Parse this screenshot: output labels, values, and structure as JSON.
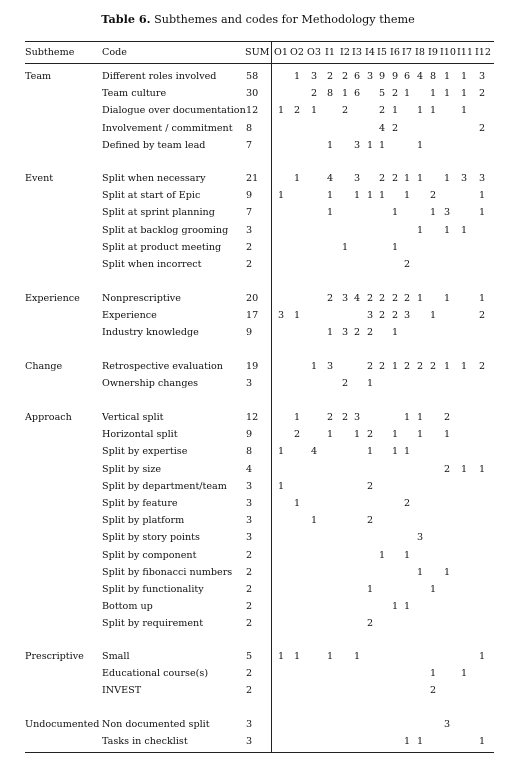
{
  "table": {
    "label": "Table 6.",
    "caption": "Subthemes and codes for Methodology theme",
    "headers": {
      "subtheme": "Subtheme",
      "code": "Code",
      "sum": "SUM",
      "columns": [
        "O1",
        "O2",
        "O3",
        "I1",
        "I2",
        "I3",
        "I4",
        "I5",
        "I6",
        "I7",
        "I8",
        "I9",
        "I10",
        "I11",
        "I12"
      ]
    },
    "groups": [
      {
        "name": "Team",
        "rows": [
          {
            "code": "Different roles involved",
            "sum": "58",
            "cells": [
              "",
              "1",
              "3",
              "2",
              "2",
              "6",
              "3",
              "9",
              "9",
              "6",
              "4",
              "8",
              "1",
              "1",
              "3"
            ]
          },
          {
            "code": "Team culture",
            "sum": "30",
            "cells": [
              "",
              "",
              "2",
              "8",
              "1",
              "6",
              "",
              "5",
              "2",
              "1",
              "",
              "1",
              "1",
              "1",
              "2"
            ]
          },
          {
            "code": "Dialogue over documentation",
            "sum": "12",
            "cells": [
              "1",
              "2",
              "1",
              "",
              "2",
              "",
              "",
              "2",
              "1",
              "",
              "1",
              "1",
              "",
              "1",
              ""
            ]
          },
          {
            "code": "Involvement / commitment",
            "sum": "8",
            "cells": [
              "",
              "",
              "",
              "",
              "",
              "",
              "",
              "4",
              "2",
              "",
              "",
              "",
              "",
              "",
              "2"
            ]
          },
          {
            "code": "Defined by team lead",
            "sum": "7",
            "cells": [
              "",
              "",
              "",
              "1",
              "",
              "3",
              "1",
              "1",
              "",
              "",
              "1",
              "",
              "",
              "",
              ""
            ]
          }
        ]
      },
      {
        "name": "Event",
        "rows": [
          {
            "code": "Split when necessary",
            "sum": "21",
            "cells": [
              "",
              "1",
              "",
              "4",
              "",
              "3",
              "",
              "2",
              "2",
              "1",
              "1",
              "",
              "1",
              "3",
              "3"
            ]
          },
          {
            "code": "Split at start of Epic",
            "sum": "9",
            "cells": [
              "1",
              "",
              "",
              "1",
              "",
              "1",
              "1",
              "1",
              "",
              "1",
              "",
              "2",
              "",
              "",
              "1"
            ]
          },
          {
            "code": "Split at sprint planning",
            "sum": "7",
            "cells": [
              "",
              "",
              "",
              "1",
              "",
              "",
              "",
              "",
              "1",
              "",
              "",
              "1",
              "3",
              "",
              "1"
            ]
          },
          {
            "code": "Split at backlog grooming",
            "sum": "3",
            "cells": [
              "",
              "",
              "",
              "",
              "",
              "",
              "",
              "",
              "",
              "",
              "1",
              "",
              "1",
              "1",
              ""
            ]
          },
          {
            "code": "Split at product meeting",
            "sum": "2",
            "cells": [
              "",
              "",
              "",
              "",
              "1",
              "",
              "",
              "",
              "1",
              "",
              "",
              "",
              "",
              "",
              ""
            ]
          },
          {
            "code": "Split when incorrect",
            "sum": "2",
            "cells": [
              "",
              "",
              "",
              "",
              "",
              "",
              "",
              "",
              "",
              "2",
              "",
              "",
              "",
              "",
              ""
            ]
          }
        ]
      },
      {
        "name": "Experience",
        "rows": [
          {
            "code": "Nonprescriptive",
            "sum": "20",
            "cells": [
              "",
              "",
              "",
              "2",
              "3",
              "4",
              "2",
              "2",
              "2",
              "2",
              "1",
              "",
              "1",
              "",
              "1"
            ]
          },
          {
            "code": "Experience",
            "sum": "17",
            "cells": [
              "3",
              "1",
              "",
              "",
              "",
              "",
              "3",
              "2",
              "2",
              "3",
              "",
              "1",
              "",
              "",
              "2"
            ]
          },
          {
            "code": "Industry knowledge",
            "sum": "9",
            "cells": [
              "",
              "",
              "",
              "1",
              "3",
              "2",
              "2",
              "",
              "1",
              "",
              "",
              "",
              "",
              "",
              ""
            ]
          }
        ]
      },
      {
        "name": "Change",
        "rows": [
          {
            "code": "Retrospective evaluation",
            "sum": "19",
            "cells": [
              "",
              "",
              "1",
              "3",
              "",
              "",
              "2",
              "2",
              "1",
              "2",
              "2",
              "2",
              "1",
              "1",
              "2"
            ]
          },
          {
            "code": "Ownership changes",
            "sum": "3",
            "cells": [
              "",
              "",
              "",
              "",
              "2",
              "",
              "1",
              "",
              "",
              "",
              "",
              "",
              "",
              "",
              ""
            ]
          }
        ]
      },
      {
        "name": "Approach",
        "rows": [
          {
            "code": "Vertical split",
            "sum": "12",
            "cells": [
              "",
              "1",
              "",
              "2",
              "2",
              "3",
              "",
              "",
              "",
              "1",
              "1",
              "",
              "2",
              "",
              ""
            ]
          },
          {
            "code": "Horizontal split",
            "sum": "9",
            "cells": [
              "",
              "2",
              "",
              "1",
              "",
              "1",
              "2",
              "",
              "1",
              "",
              "1",
              "",
              "1",
              "",
              ""
            ]
          },
          {
            "code": "Split by expertise",
            "sum": "8",
            "cells": [
              "1",
              "",
              "4",
              "",
              "",
              "",
              "1",
              "",
              "1",
              "1",
              "",
              "",
              "",
              "",
              ""
            ]
          },
          {
            "code": "Split by size",
            "sum": "4",
            "cells": [
              "",
              "",
              "",
              "",
              "",
              "",
              "",
              "",
              "",
              "",
              "",
              "",
              "2",
              "1",
              "1"
            ]
          },
          {
            "code": "Split by department/team",
            "sum": "3",
            "cells": [
              "1",
              "",
              "",
              "",
              "",
              "",
              "2",
              "",
              "",
              "",
              "",
              "",
              "",
              "",
              ""
            ]
          },
          {
            "code": "Split by feature",
            "sum": "3",
            "cells": [
              "",
              "1",
              "",
              "",
              "",
              "",
              "",
              "",
              "",
              "2",
              "",
              "",
              "",
              "",
              ""
            ]
          },
          {
            "code": "Split by platform",
            "sum": "3",
            "cells": [
              "",
              "",
              "1",
              "",
              "",
              "",
              "2",
              "",
              "",
              "",
              "",
              "",
              "",
              "",
              ""
            ]
          },
          {
            "code": "Split by story points",
            "sum": "3",
            "cells": [
              "",
              "",
              "",
              "",
              "",
              "",
              "",
              "",
              "",
              "",
              "3",
              "",
              "",
              "",
              ""
            ]
          },
          {
            "code": "Split by component",
            "sum": "2",
            "cells": [
              "",
              "",
              "",
              "",
              "",
              "",
              "",
              "1",
              "",
              "1",
              "",
              "",
              "",
              "",
              ""
            ]
          },
          {
            "code": "Split by fibonacci numbers",
            "sum": "2",
            "cells": [
              "",
              "",
              "",
              "",
              "",
              "",
              "",
              "",
              "",
              "",
              "1",
              "",
              "1",
              "",
              ""
            ]
          },
          {
            "code": "Split by functionality",
            "sum": "2",
            "cells": [
              "",
              "",
              "",
              "",
              "",
              "",
              "1",
              "",
              "",
              "",
              "",
              "1",
              "",
              "",
              ""
            ]
          },
          {
            "code": "Bottom up",
            "sum": "2",
            "cells": [
              "",
              "",
              "",
              "",
              "",
              "",
              "",
              "",
              "1",
              "1",
              "",
              "",
              "",
              "",
              ""
            ]
          },
          {
            "code": "Split by requirement",
            "sum": "2",
            "cells": [
              "",
              "",
              "",
              "",
              "",
              "",
              "2",
              "",
              "",
              "",
              "",
              "",
              "",
              "",
              ""
            ]
          }
        ]
      },
      {
        "name": "Prescriptive",
        "rows": [
          {
            "code": "Small",
            "sum": "5",
            "cells": [
              "1",
              "1",
              "",
              "1",
              "",
              "1",
              "",
              "",
              "",
              "",
              "",
              "",
              "",
              "",
              "1"
            ]
          },
          {
            "code": "Educational course(s)",
            "sum": "2",
            "cells": [
              "",
              "",
              "",
              "",
              "",
              "",
              "",
              "",
              "",
              "",
              "",
              "1",
              "",
              "1",
              ""
            ]
          },
          {
            "code": "INVEST",
            "sum": "2",
            "cells": [
              "",
              "",
              "",
              "",
              "",
              "",
              "",
              "",
              "",
              "",
              "",
              "2",
              "",
              "",
              ""
            ]
          }
        ]
      },
      {
        "name": "Undocumented",
        "rows": [
          {
            "code": "Non documented split",
            "sum": "3",
            "cells": [
              "",
              "",
              "",
              "",
              "",
              "",
              "",
              "",
              "",
              "",
              "",
              "",
              "3",
              "",
              ""
            ]
          },
          {
            "code": "Tasks in checklist",
            "sum": "3",
            "cells": [
              "",
              "",
              "",
              "",
              "",
              "",
              "",
              "",
              "",
              "1",
              "1",
              "",
              "",
              "",
              "1"
            ]
          }
        ]
      }
    ]
  }
}
